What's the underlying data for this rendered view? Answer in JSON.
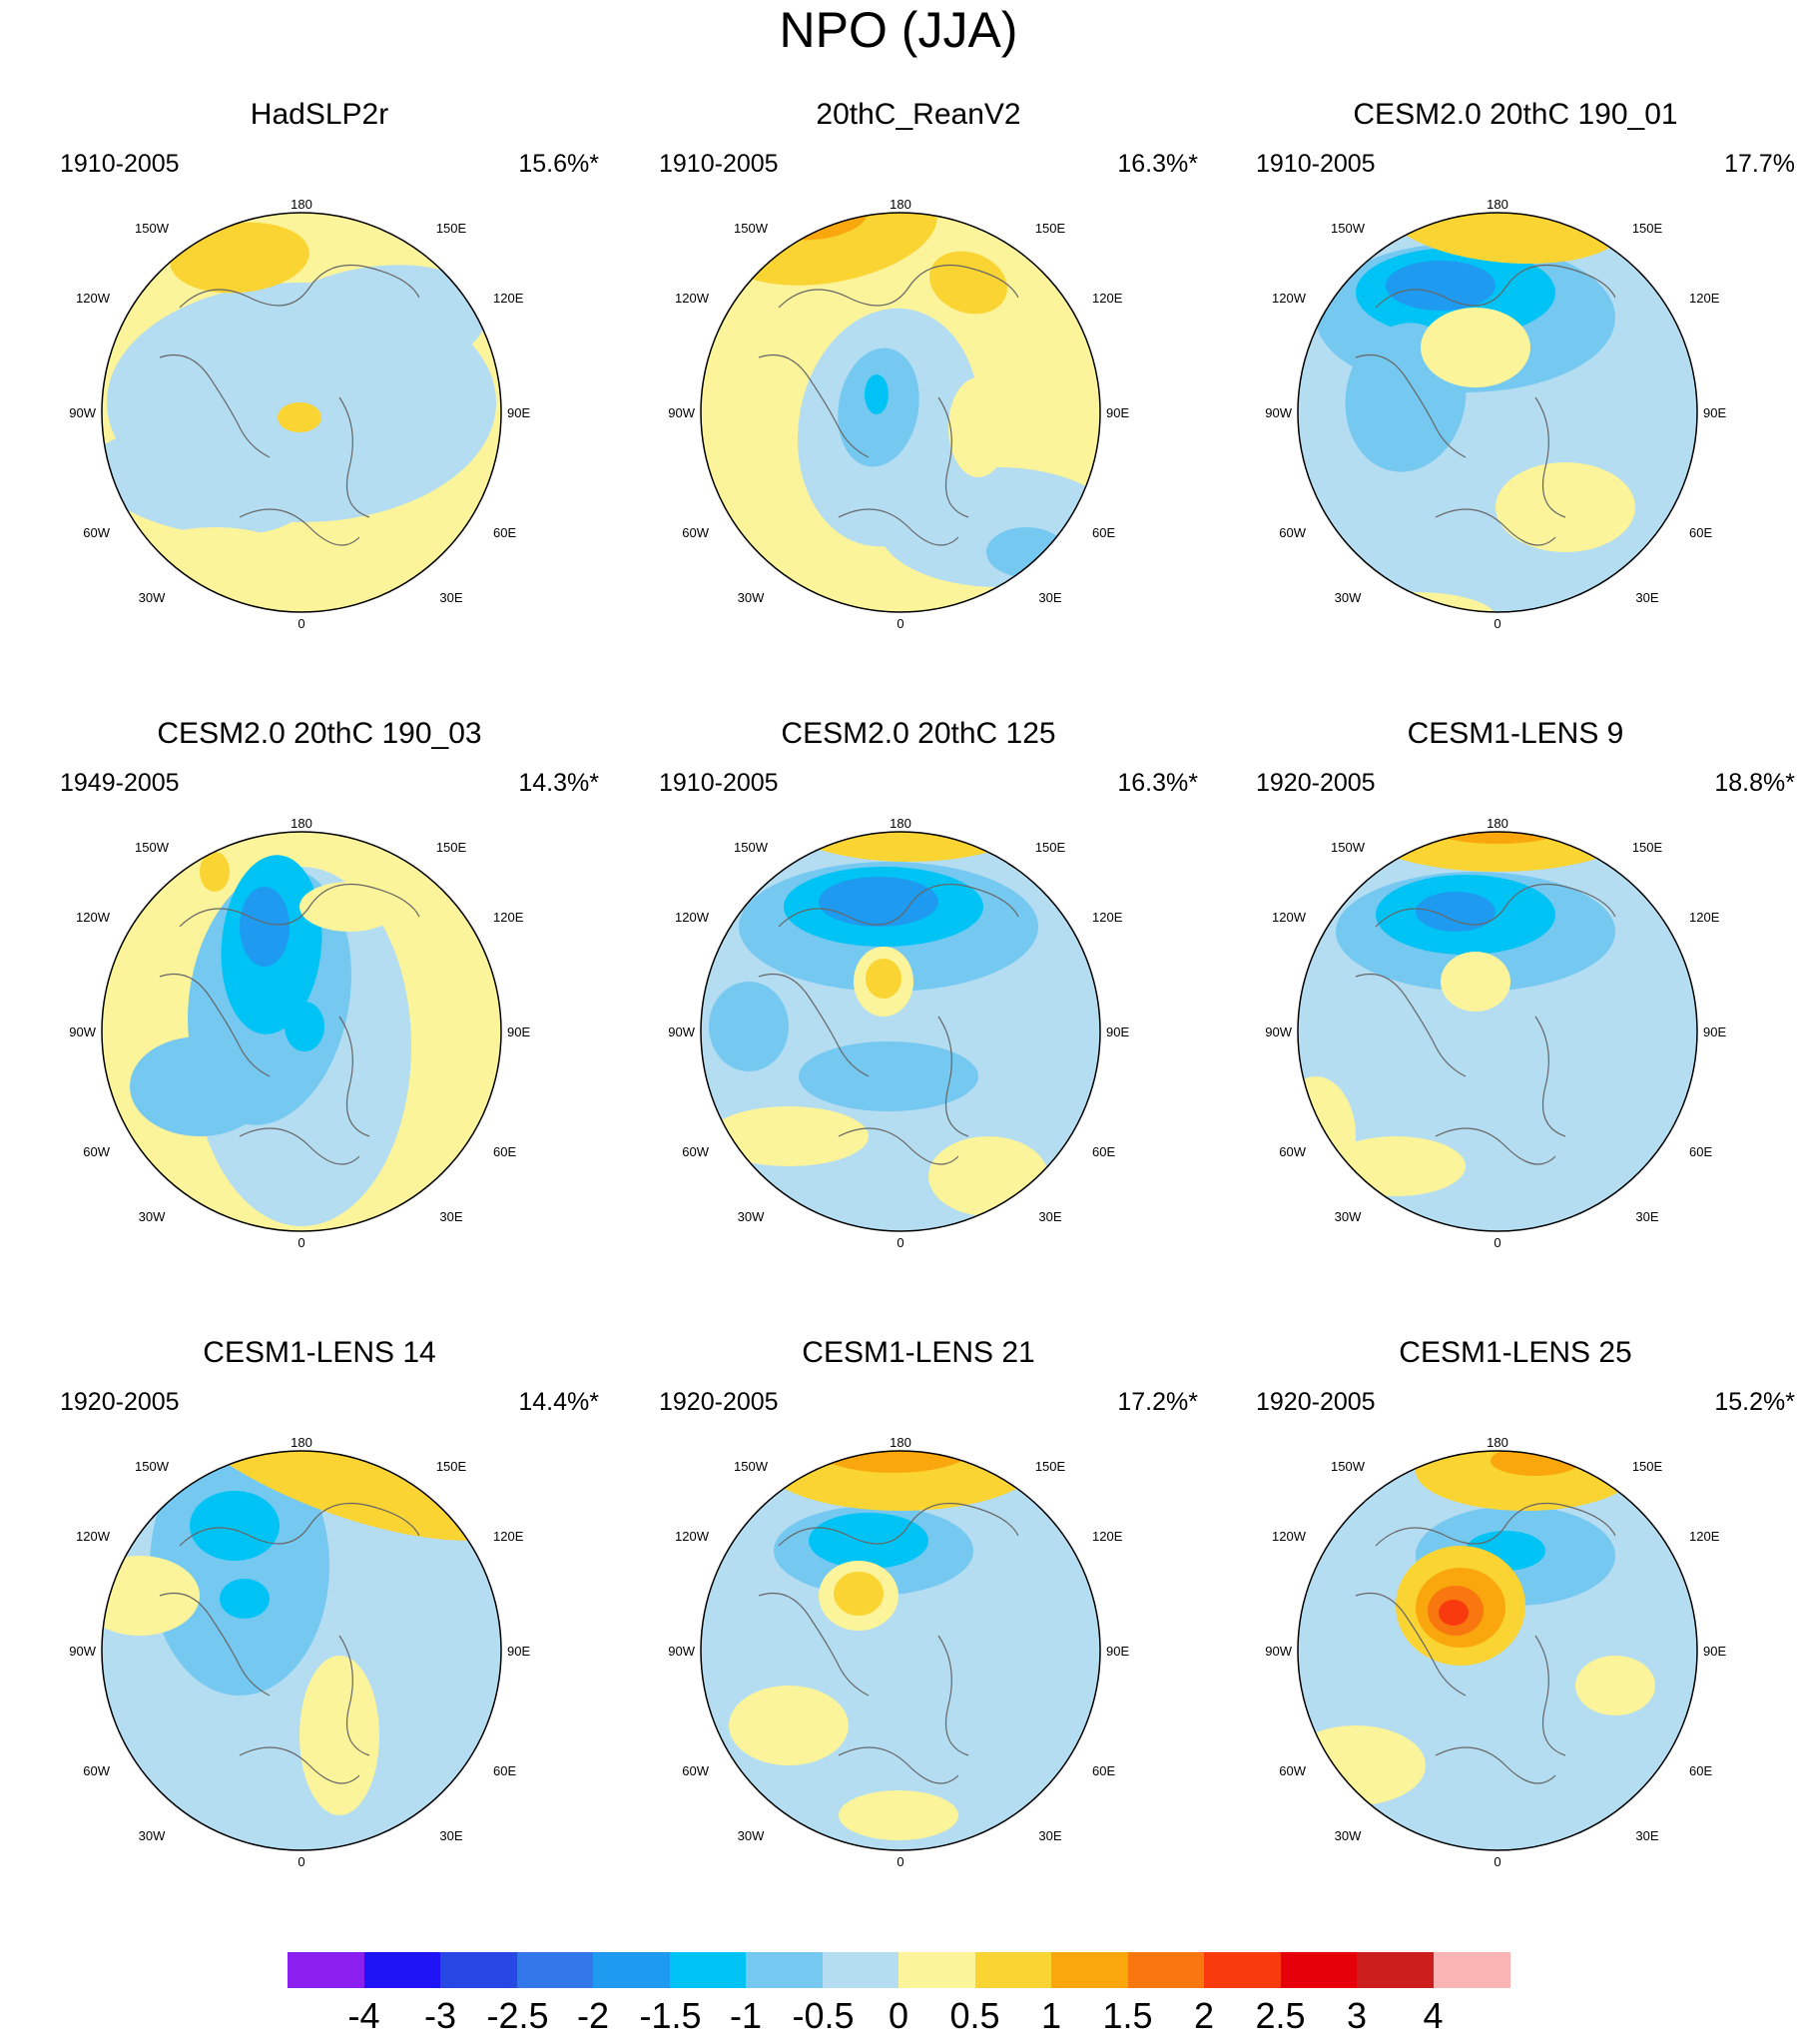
{
  "figure": {
    "title": "NPO (JJA)"
  },
  "map_labels": {
    "top": "180",
    "bottom": "0",
    "left": "90W",
    "right": "90E",
    "upper_left_outer": "120W",
    "upper_left_inner": "150W",
    "upper_right_inner": "150E",
    "upper_right_outer": "120E",
    "lower_left_outer": "60W",
    "lower_left_inner": "30W",
    "lower_right_inner": "30E",
    "lower_right_outer": "60E"
  },
  "panels": [
    {
      "title": "HadSLP2r",
      "period": "1910-2005",
      "variance": "15.6%*"
    },
    {
      "title": "20thC_ReanV2",
      "period": "1910-2005",
      "variance": "16.3%*"
    },
    {
      "title": "CESM2.0 20thC 190_01",
      "period": "1910-2005",
      "variance": "17.7%"
    },
    {
      "title": "CESM2.0 20thC 190_03",
      "period": "1949-2005",
      "variance": "14.3%*"
    },
    {
      "title": "CESM2.0 20thC 125",
      "period": "1910-2005",
      "variance": "16.3%*"
    },
    {
      "title": "CESM1-LENS 9",
      "period": "1920-2005",
      "variance": "18.8%*"
    },
    {
      "title": "CESM1-LENS 14",
      "period": "1920-2005",
      "variance": "14.4%*"
    },
    {
      "title": "CESM1-LENS 21",
      "period": "1920-2005",
      "variance": "17.2%*"
    },
    {
      "title": "CESM1-LENS 25",
      "period": "1920-2005",
      "variance": "15.2%*"
    }
  ],
  "colorbar": {
    "labels": [
      "-4",
      "-3",
      "-2.5",
      "-2",
      "-1.5",
      "-1",
      "-0.5",
      "0",
      "0.5",
      "1",
      "1.5",
      "2",
      "2.5",
      "3",
      "4"
    ],
    "colors": [
      "#8a1ff0",
      "#1e14f5",
      "#2848e6",
      "#3278ea",
      "#1e9af0",
      "#00c3f5",
      "#75c8f0",
      "#b4ddf2",
      "#fbf49a",
      "#fad432",
      "#f9a70c",
      "#f8780f",
      "#f83a0e",
      "#e5000a",
      "#cd1e1e",
      "#fbb4b4"
    ]
  },
  "chart_data": {
    "type": "contour-map",
    "projection": "north polar stereographic",
    "levels": [
      -4,
      -3,
      -2.5,
      -2,
      -1.5,
      -1,
      -0.5,
      0,
      0.5,
      1,
      1.5,
      2,
      2.5,
      3,
      4
    ],
    "panels": [
      {
        "name": "HadSLP2r",
        "max_positive": 1.5,
        "max_negative": -0.5
      },
      {
        "name": "20thC_ReanV2",
        "max_positive": 1.0,
        "max_negative": -1.0
      },
      {
        "name": "CESM2.0 20thC 190_01",
        "max_positive": 0.5,
        "max_negative": -1.5
      },
      {
        "name": "CESM2.0 20thC 190_03",
        "max_positive": 0.5,
        "max_negative": -1.5
      },
      {
        "name": "CESM2.0 20thC 125",
        "max_positive": 1.0,
        "max_negative": -1.5
      },
      {
        "name": "CESM1-LENS 9",
        "max_positive": 1.0,
        "max_negative": -1.5
      },
      {
        "name": "CESM1-LENS 14",
        "max_positive": 0.5,
        "max_negative": -1.0
      },
      {
        "name": "CESM1-LENS 21",
        "max_positive": 1.0,
        "max_negative": -1.5
      },
      {
        "name": "CESM1-LENS 25",
        "max_positive": 2.5,
        "max_negative": -1.0
      }
    ]
  }
}
